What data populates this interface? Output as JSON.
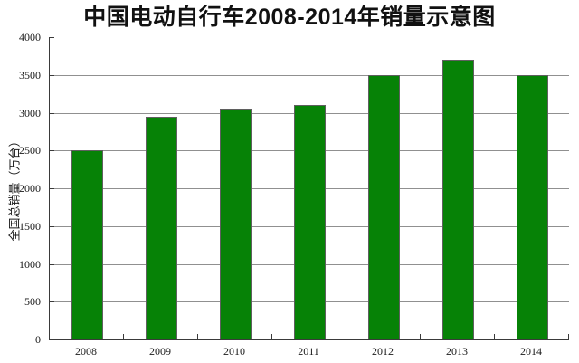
{
  "title": "中国电动自行车2008-2014年销量示意图",
  "chart_data": {
    "type": "bar",
    "title": "中国电动自行车2008-2014年销量示意图",
    "categories": [
      "2008",
      "2009",
      "2010",
      "2011",
      "2012",
      "2013",
      "2014"
    ],
    "values": [
      2500,
      2950,
      3050,
      3100,
      3500,
      3700,
      3500
    ],
    "xlabel": "",
    "ylabel": "全国总销量（万台）",
    "ylim": [
      0,
      4000
    ],
    "ytick_step": 500,
    "ytick_labels": [
      "0",
      "500",
      "1000",
      "1500",
      "2000",
      "2500",
      "3000",
      "3500",
      "4000"
    ],
    "grid": true,
    "legend_position": "none",
    "colors": {
      "bar_fill": "#068206",
      "bar_border": "#5f5f5f",
      "gridline": "#909090",
      "axis": "#3a3a3a",
      "text": "#1a1a1a",
      "background": "#ffffff"
    }
  }
}
